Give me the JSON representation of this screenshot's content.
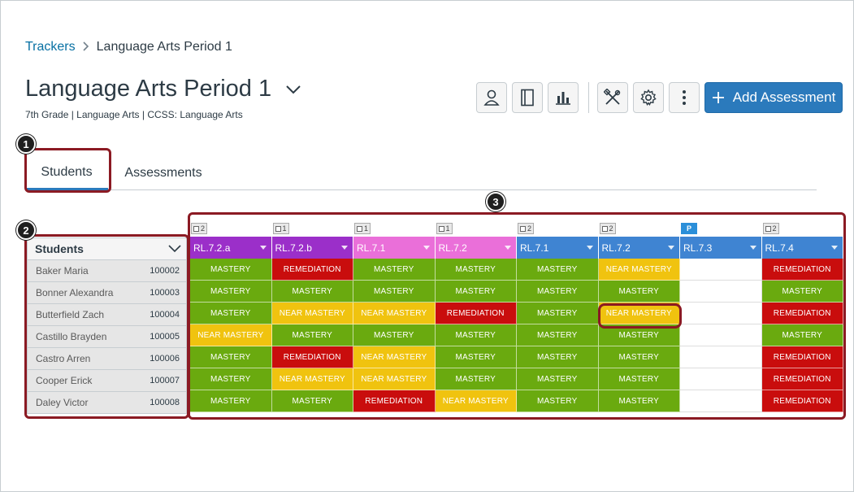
{
  "breadcrumb": {
    "root": "Trackers",
    "current": "Language Arts Period 1"
  },
  "header": {
    "title": "Language Arts Period 1",
    "subtitle": "7th Grade  |  Language Arts  |  CCSS: Language Arts"
  },
  "toolbar": {
    "add_label": "Add Assessment"
  },
  "tabs": {
    "students": "Students",
    "assessments": "Assessments"
  },
  "callouts": {
    "one": "1",
    "two": "2",
    "three": "3"
  },
  "students": {
    "header": "Students",
    "rows": [
      {
        "name": "Baker Maria",
        "id": "100002"
      },
      {
        "name": "Bonner Alexandra",
        "id": "100003"
      },
      {
        "name": "Butterfield Zach",
        "id": "100004"
      },
      {
        "name": "Castillo Brayden",
        "id": "100005"
      },
      {
        "name": "Castro Arren",
        "id": "100006"
      },
      {
        "name": "Cooper Erick",
        "id": "100007"
      },
      {
        "name": "Daley Victor",
        "id": "100008"
      }
    ]
  },
  "grid": {
    "columns": [
      {
        "tag": "2",
        "label": "RL.7.2.a",
        "color": "#9b2fc9"
      },
      {
        "tag": "1",
        "label": "RL.7.2.b",
        "color": "#9b2fc9"
      },
      {
        "tag": "1",
        "label": "RL.7.1",
        "color": "#ea6fd9"
      },
      {
        "tag": "1",
        "label": "RL.7.2",
        "color": "#ea6fd9"
      },
      {
        "tag": "2",
        "label": "RL.7.1",
        "color": "#3f84d2"
      },
      {
        "tag": "2",
        "label": "RL.7.2",
        "color": "#3f84d2"
      },
      {
        "tag": "P",
        "label": "RL.7.3",
        "color": "#3f84d2"
      },
      {
        "tag": "2",
        "label": "RL.7.4",
        "color": "#3f84d2"
      }
    ],
    "labels": {
      "mastery": "MASTERY",
      "near": "NEAR MASTERY",
      "remed": "REMEDIATION"
    },
    "rows": [
      [
        "mastery",
        "remed",
        "mastery",
        "mastery",
        "mastery",
        "near",
        "empty",
        "remed"
      ],
      [
        "mastery",
        "mastery",
        "mastery",
        "mastery",
        "mastery",
        "mastery",
        "empty",
        "mastery"
      ],
      [
        "mastery",
        "near",
        "near",
        "remed",
        "mastery",
        "near",
        "empty",
        "remed"
      ],
      [
        "near",
        "mastery",
        "mastery",
        "mastery",
        "mastery",
        "mastery",
        "empty",
        "mastery"
      ],
      [
        "mastery",
        "remed",
        "near",
        "mastery",
        "mastery",
        "mastery",
        "empty",
        "remed"
      ],
      [
        "mastery",
        "near",
        "near",
        "mastery",
        "mastery",
        "mastery",
        "empty",
        "remed"
      ],
      [
        "mastery",
        "mastery",
        "remed",
        "near",
        "mastery",
        "mastery",
        "empty",
        "remed"
      ]
    ]
  }
}
